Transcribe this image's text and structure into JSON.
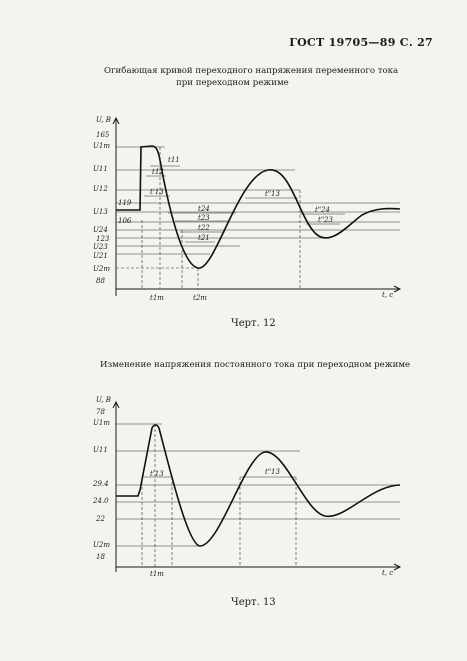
{
  "header": {
    "standard": "ГОСТ 19705—89 С. 27"
  },
  "figure12": {
    "title_line1": "Огибающая кривой переходного напряжения переменного тока",
    "title_line2": "при переходном режиме",
    "y_axis_label": "U, В",
    "x_axis_label": "t, с",
    "y_labels": [
      "165",
      "U1m",
      "U11",
      "U12",
      "119",
      "U13",
      "106",
      "U24",
      "123",
      "U23",
      "U21",
      "U2m",
      "88"
    ],
    "x_labels": [
      "t1m",
      "t2m"
    ],
    "interval_labels": [
      "t11",
      "t12",
      "t'13",
      "t24",
      "t23",
      "t22",
      "t21",
      "t\"13",
      "t\"24",
      "t\"23"
    ],
    "caption": "Черт. 12"
  },
  "figure13": {
    "title": "Изменение напряжения постоянного тока при переходном режиме",
    "y_axis_label": "U, В",
    "x_axis_label": "t, с",
    "y_labels": [
      "78",
      "U1m",
      "U11",
      "29.4",
      "24.0",
      "22",
      "U2m",
      "18"
    ],
    "x_labels": [
      "t1m"
    ],
    "interval_labels": [
      "t'13",
      "t\"13"
    ],
    "caption": "Черт. 13"
  }
}
